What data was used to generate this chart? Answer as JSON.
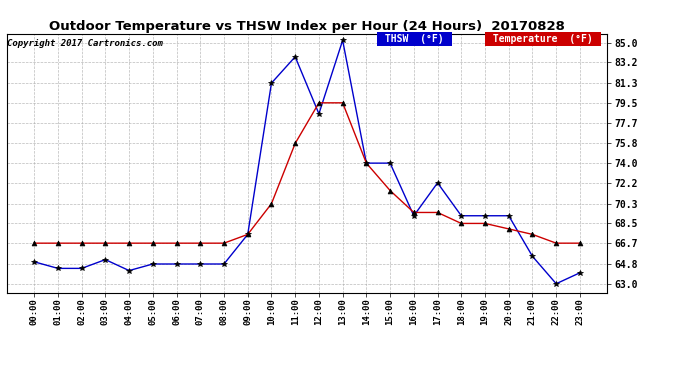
{
  "title": "Outdoor Temperature vs THSW Index per Hour (24 Hours)  20170828",
  "copyright": "Copyright 2017 Cartronics.com",
  "hours": [
    "00:00",
    "01:00",
    "02:00",
    "03:00",
    "04:00",
    "05:00",
    "06:00",
    "07:00",
    "08:00",
    "09:00",
    "10:00",
    "11:00",
    "12:00",
    "13:00",
    "14:00",
    "15:00",
    "16:00",
    "17:00",
    "18:00",
    "19:00",
    "20:00",
    "21:00",
    "22:00",
    "23:00"
  ],
  "thsw": [
    65.0,
    64.4,
    64.4,
    65.2,
    64.2,
    64.8,
    64.8,
    64.8,
    64.8,
    67.5,
    81.3,
    83.7,
    78.5,
    85.2,
    74.0,
    74.0,
    69.2,
    72.2,
    69.2,
    69.2,
    69.2,
    65.5,
    63.0,
    64.0
  ],
  "temperature": [
    66.7,
    66.7,
    66.7,
    66.7,
    66.7,
    66.7,
    66.7,
    66.7,
    66.7,
    67.5,
    70.3,
    75.8,
    79.5,
    79.5,
    74.0,
    71.5,
    69.5,
    69.5,
    68.5,
    68.5,
    68.0,
    67.5,
    66.7,
    66.7
  ],
  "thsw_color": "#0000cc",
  "temp_color": "#cc0000",
  "background_color": "#ffffff",
  "plot_bg_color": "#ffffff",
  "grid_color": "#aaaaaa",
  "yticks": [
    63.0,
    64.8,
    66.7,
    68.5,
    70.3,
    72.2,
    74.0,
    75.8,
    77.7,
    79.5,
    81.3,
    83.2,
    85.0
  ],
  "ylim": [
    62.2,
    85.8
  ],
  "legend_thsw_bg": "#0000cc",
  "legend_temp_bg": "#cc0000"
}
